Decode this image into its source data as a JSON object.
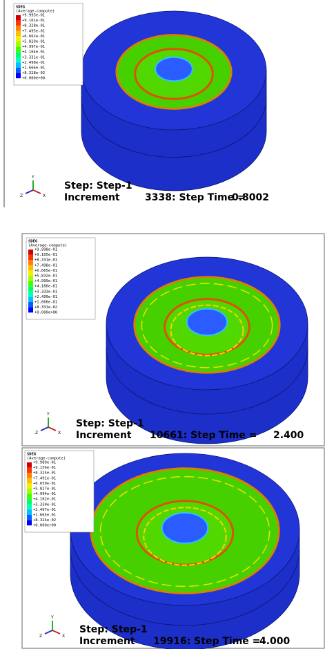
{
  "panels": [
    {
      "legend": {
        "title": "SDEG",
        "subtitle": "(Average-compute)",
        "labels": [
          "+9.993e-01",
          "+9.161e-01",
          "+8.328e-01",
          "+7.495e-01",
          "+6.662e-01",
          "+5.829e-01",
          "+4.997e-01",
          "+4.164e-01",
          "+3.331e-01",
          "+2.498e-01",
          "+1.666e-01",
          "+8.328e-02",
          "+0.000e+00"
        ]
      },
      "step": "Step: Step-1",
      "increment_label": "Increment",
      "increment": "3338: Step Time =",
      "time": "0.8002",
      "axes": [
        "Y",
        "Z",
        "X"
      ]
    },
    {
      "legend": {
        "title": "SDEG",
        "subtitle": "(Average-compute)",
        "labels": [
          "+9.998e-01",
          "+9.165e-01",
          "+8.331e-01",
          "+7.498e-01",
          "+6.665e-01",
          "+5.832e-01",
          "+4.999e-01",
          "+4.166e-01",
          "+3.333e-01",
          "+2.499e-01",
          "+1.666e-01",
          "+8.331e-02",
          "+0.000e+00"
        ]
      },
      "step": "Step: Step-1",
      "increment_label": "Increment",
      "increment": "10661: Step Time =",
      "time": "2.400",
      "axes": [
        "Y",
        "Z",
        "X"
      ]
    },
    {
      "legend": {
        "title": "SDEG",
        "subtitle": "(Average-compute)",
        "labels": [
          "+9.989e-01",
          "+9.156e-01",
          "+8.324e-01",
          "+7.491e-01",
          "+6.659e-01",
          "+5.827e-01",
          "+4.994e-01",
          "+4.162e-01",
          "+3.330e-01",
          "+2.497e-01",
          "+1.665e-01",
          "+8.324e-02",
          "+0.000e+00"
        ]
      },
      "step": "Step: Step-1",
      "increment_label": "Increment",
      "increment": "19916: Step Time =",
      "time": "4.000",
      "axes": [
        "Y",
        "Z",
        "X"
      ]
    }
  ]
}
